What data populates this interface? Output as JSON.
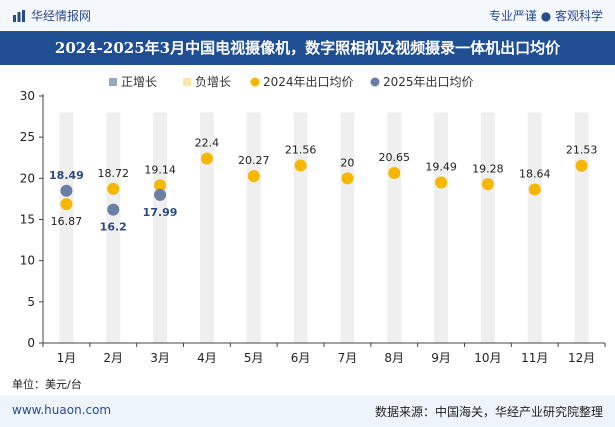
{
  "header": {
    "brand": "华经情报网",
    "tagline": "专业严谨 ● 客观科学"
  },
  "colors": {
    "brand_blue": "#1f4e93",
    "series_2024": "#f5b700",
    "series_2025": "#6b7fa6",
    "legend_pos": "#9aa7bc",
    "legend_neg": "#fbe7a7",
    "band": "#efefef"
  },
  "chart_data": {
    "type": "scatter",
    "title": "2024-2025年3月中国电视摄像机，数字照相机及视频摄录一体机出口均价",
    "categories": [
      "1月",
      "2月",
      "3月",
      "4月",
      "5月",
      "6月",
      "7月",
      "8月",
      "9月",
      "10月",
      "11月",
      "12月"
    ],
    "legend": [
      "正增长",
      "负增长",
      "2024年出口均价",
      "2025年出口均价"
    ],
    "series": [
      {
        "name": "2024年出口均价",
        "values": [
          16.87,
          18.72,
          19.14,
          22.4,
          20.27,
          21.56,
          20,
          20.65,
          19.49,
          19.28,
          18.64,
          21.53
        ]
      },
      {
        "name": "2025年出口均价",
        "values": [
          18.49,
          16.2,
          17.99
        ]
      }
    ],
    "label_texts_2024": [
      "16.87",
      "18.72",
      "19.14",
      "22.4",
      "20.27",
      "21.56",
      "20",
      "20.65",
      "19.49",
      "19.28",
      "18.64",
      "21.53"
    ],
    "label_texts_2025": [
      "18.49",
      "16.2",
      "17.99"
    ],
    "ylim": [
      0,
      30
    ],
    "yticks": [
      0,
      5,
      10,
      15,
      20,
      25,
      30
    ],
    "ytick_labels": [
      "0",
      "5",
      "10",
      "15",
      "20",
      "25",
      "30"
    ],
    "xlabel": "",
    "ylabel": "",
    "grid": false
  },
  "unit_text": "单位：美元/台",
  "footer": {
    "site": "www.huaon.com",
    "source": "数据来源：中国海关，华经产业研究院整理"
  }
}
